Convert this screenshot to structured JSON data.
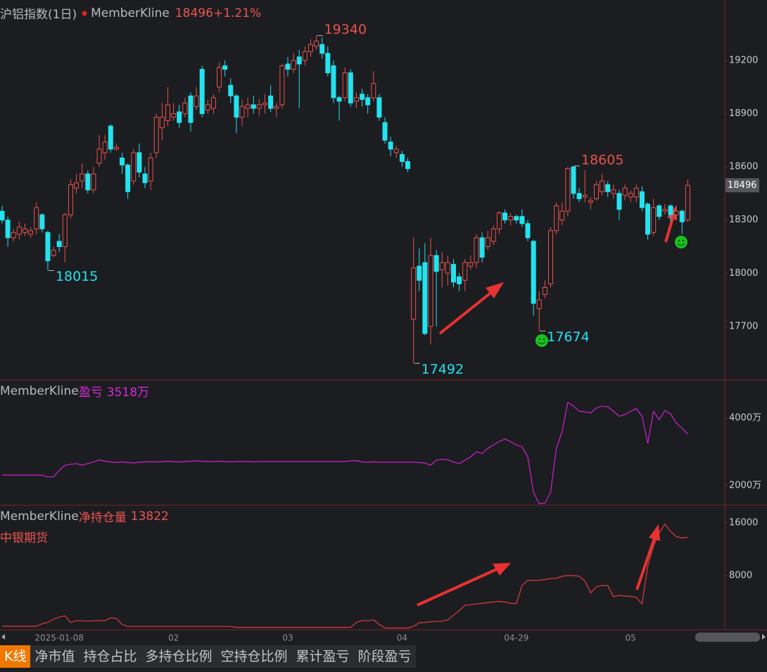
{
  "tabs": [
    "K线",
    "净市值",
    "持仓占比",
    "多持仓比例",
    "空持仓比例",
    "累计盈亏",
    "阶段盈亏"
  ],
  "active_tab": 0,
  "chart_data": [
    {
      "type": "candlestick",
      "title": "沪铝指数(1日)",
      "indicator": "MemberKline",
      "change_label": "+1.21%",
      "up_color": "#e8524a",
      "down_color": "#22e3ee",
      "ylim": [
        17398,
        19521
      ],
      "yticks": [
        17700,
        18000,
        18300,
        18600,
        18900,
        19200
      ],
      "annotations": [
        19340,
        18015,
        17492,
        17674,
        18605
      ],
      "categories": [
        null,
        null,
        null,
        null,
        null,
        null,
        null,
        null,
        null,
        null,
        "2025-01-08",
        null,
        null,
        null,
        null,
        null,
        null,
        null,
        null,
        null,
        null,
        null,
        null,
        null,
        null,
        null,
        null,
        null,
        null,
        null,
        "02",
        null,
        null,
        null,
        null,
        null,
        null,
        null,
        null,
        null,
        null,
        null,
        null,
        null,
        null,
        null,
        null,
        null,
        null,
        null,
        "03",
        null,
        null,
        null,
        null,
        null,
        null,
        null,
        null,
        null,
        null,
        null,
        null,
        null,
        null,
        null,
        null,
        null,
        null,
        null,
        "04",
        null,
        null,
        null,
        null,
        null,
        null,
        null,
        null,
        null,
        null,
        null,
        null,
        null,
        null,
        null,
        null,
        null,
        null,
        null,
        "04-29",
        null,
        null,
        null,
        null,
        null,
        null,
        null,
        null,
        null,
        null,
        null,
        null,
        null,
        null,
        null,
        null,
        null,
        null,
        null,
        "05",
        null,
        null,
        null,
        null,
        null,
        null,
        null,
        null,
        null,
        null
      ],
      "open": [
        18350,
        18300,
        18200,
        18220,
        18230,
        18220,
        18250,
        18330,
        18230,
        18100,
        18180,
        18150,
        18330,
        18480,
        18520,
        18560,
        18470,
        18620,
        18680,
        18830,
        18700,
        18650,
        18610,
        18520,
        18680,
        18560,
        18520,
        18680,
        18820,
        18860,
        18880,
        18910,
        18900,
        19000,
        18940,
        19150,
        18920,
        18930,
        19050,
        19170,
        19060,
        19000,
        18880,
        18930,
        18950,
        18930,
        18950,
        19000,
        18930,
        18950,
        19180,
        19150,
        19220,
        19200,
        19250,
        19280,
        19290,
        19240,
        19170,
        18990,
        18990,
        19130,
        18970,
        19010,
        18990,
        18990,
        18990,
        18850,
        18740,
        18680,
        18670,
        18630,
        17740,
        18040,
        18060,
        17700,
        18100,
        18020,
        18000,
        18050,
        17980,
        17960,
        18040,
        18060,
        18200,
        18150,
        18180,
        18250,
        18340,
        18300,
        18320,
        18320,
        18280,
        18180,
        17800,
        17880,
        17940,
        18240,
        18300,
        18350,
        18600,
        18450,
        18430,
        18400,
        18420,
        18460,
        18500,
        18450,
        18450,
        18440,
        18430,
        18430,
        18460,
        18390,
        18230,
        18380,
        18350,
        18380,
        18330,
        18350,
        18300
      ],
      "high": [
        18380,
        18320,
        18250,
        18290,
        18280,
        18260,
        18400,
        18340,
        18240,
        18150,
        18220,
        18340,
        18530,
        18560,
        18620,
        18580,
        18600,
        18780,
        18780,
        18840,
        18730,
        18680,
        18620,
        18700,
        18730,
        18600,
        18680,
        18900,
        18960,
        19050,
        18960,
        18950,
        18990,
        19020,
        19050,
        19170,
        18980,
        19010,
        19190,
        19200,
        19100,
        19010,
        18980,
        18990,
        19000,
        18980,
        19010,
        19060,
        18960,
        19180,
        19220,
        19240,
        19260,
        19280,
        19320,
        19340,
        19330,
        19280,
        19200,
        19000,
        19160,
        19150,
        19020,
        19040,
        19010,
        19140,
        19010,
        18880,
        18770,
        18720,
        18690,
        18650,
        18200,
        18140,
        18170,
        18200,
        18130,
        18120,
        18100,
        18080,
        18000,
        18080,
        18100,
        18220,
        18230,
        18240,
        18270,
        18350,
        18360,
        18340,
        18330,
        18360,
        18300,
        18190,
        17900,
        17960,
        18260,
        18400,
        18400,
        18600,
        18605,
        18480,
        18580,
        18430,
        18520,
        18560,
        18520,
        18500,
        18470,
        18500,
        18470,
        18500,
        18490,
        18400,
        18420,
        18390,
        18390,
        18390,
        18380,
        18360,
        18530
      ],
      "low": [
        18280,
        18150,
        18180,
        18190,
        18210,
        18200,
        18220,
        18230,
        18015,
        18090,
        18120,
        18060,
        18310,
        18450,
        18480,
        18450,
        18450,
        18600,
        18640,
        18680,
        18690,
        18560,
        18420,
        18500,
        18540,
        18480,
        18470,
        18650,
        18750,
        18830,
        18860,
        18820,
        18880,
        18800,
        18920,
        18880,
        18900,
        18900,
        19020,
        19110,
        18960,
        18790,
        18830,
        18880,
        18900,
        18890,
        18900,
        18910,
        18880,
        18930,
        19110,
        19130,
        18930,
        19170,
        19220,
        19260,
        19210,
        19110,
        18960,
        18860,
        18970,
        18940,
        18930,
        18940,
        18900,
        18970,
        18860,
        18730,
        18660,
        18650,
        18600,
        18570,
        17492,
        17900,
        17650,
        17600,
        17700,
        17920,
        17930,
        17920,
        17900,
        17900,
        18020,
        18030,
        18060,
        18130,
        18160,
        18220,
        18280,
        18270,
        18280,
        18260,
        18180,
        17760,
        17674,
        17860,
        17920,
        18220,
        18270,
        18320,
        18420,
        18400,
        18400,
        18360,
        18410,
        18440,
        18430,
        18420,
        18300,
        18410,
        18400,
        18400,
        18350,
        18190,
        18210,
        18300,
        18330,
        18290,
        18300,
        18220,
        18290
      ],
      "close": [
        18300,
        18200,
        18230,
        18260,
        18250,
        18240,
        18370,
        18250,
        18070,
        18130,
        18150,
        18330,
        18500,
        18510,
        18560,
        18470,
        18560,
        18700,
        18740,
        18700,
        18710,
        18610,
        18460,
        18680,
        18570,
        18510,
        18650,
        18880,
        18880,
        18950,
        18900,
        18850,
        18960,
        18850,
        19000,
        18900,
        18950,
        18990,
        19160,
        19150,
        19000,
        18880,
        18940,
        18950,
        18930,
        18950,
        18960,
        18930,
        18940,
        19170,
        19150,
        19200,
        19180,
        19250,
        19290,
        19310,
        19240,
        19130,
        18990,
        18970,
        19130,
        18960,
        18990,
        18980,
        18950,
        19070,
        18880,
        18750,
        18700,
        18700,
        18630,
        18590,
        18030,
        17960,
        17660,
        18100,
        18010,
        18060,
        18060,
        17950,
        17940,
        18060,
        18060,
        18200,
        18090,
        18200,
        18250,
        18340,
        18300,
        18320,
        18300,
        18280,
        18200,
        17830,
        17850,
        17920,
        18240,
        18380,
        18350,
        18590,
        18450,
        18420,
        18440,
        18410,
        18500,
        18520,
        18460,
        18470,
        18360,
        18480,
        18450,
        18480,
        18370,
        18220,
        18370,
        18320,
        18360,
        18330,
        18350,
        18290,
        18496
      ]
    },
    {
      "type": "line",
      "name": "MemberKline",
      "metric": "盈亏",
      "current_label": "3518万",
      "color": "#d21fd2",
      "ylim": [
        1417,
        5125
      ],
      "yticks": [
        {
          "value": 2000,
          "label": "2000万"
        },
        {
          "value": 4000,
          "label": "4000万"
        }
      ],
      "values": [
        2310,
        2310,
        2310,
        2310,
        2310,
        2310,
        2310,
        2310,
        2250,
        2260,
        2450,
        2600,
        2630,
        2650,
        2600,
        2650,
        2700,
        2760,
        2720,
        2700,
        2680,
        2700,
        2680,
        2670,
        2690,
        2700,
        2700,
        2700,
        2710,
        2720,
        2710,
        2700,
        2710,
        2720,
        2730,
        2720,
        2710,
        2710,
        2720,
        2710,
        2700,
        2710,
        2710,
        2710,
        2700,
        2710,
        2710,
        2710,
        2710,
        2710,
        2710,
        2710,
        2710,
        2710,
        2710,
        2710,
        2710,
        2710,
        2710,
        2710,
        2710,
        2730,
        2740,
        2700,
        2690,
        2700,
        2690,
        2690,
        2690,
        2690,
        2690,
        2690,
        2690,
        2680,
        2670,
        2600,
        2750,
        2780,
        2760,
        2700,
        2650,
        2750,
        2850,
        3000,
        2950,
        3100,
        3200,
        3300,
        3380,
        3300,
        3200,
        3150,
        2850,
        1800,
        1460,
        1480,
        1800,
        3100,
        3600,
        4460,
        4350,
        4200,
        4180,
        4150,
        4300,
        4350,
        4330,
        4200,
        4050,
        4100,
        4200,
        4280,
        4050,
        3250,
        4200,
        3950,
        4220,
        4120,
        3850,
        3700,
        3518
      ]
    },
    {
      "type": "line",
      "name": "MemberKline",
      "metric": "净持仓量",
      "member": "中银期货",
      "color": "#e23c3c",
      "ylim": [
        -213,
        18667
      ],
      "yticks": [
        8000,
        16000
      ],
      "values": [
        320,
        320,
        320,
        320,
        320,
        320,
        320,
        700,
        900,
        1400,
        1700,
        1900,
        900,
        1150,
        1150,
        1100,
        1150,
        1200,
        1150,
        1600,
        1500,
        600,
        300,
        300,
        300,
        300,
        300,
        300,
        300,
        300,
        300,
        300,
        300,
        300,
        300,
        300,
        300,
        300,
        300,
        300,
        300,
        150,
        150,
        150,
        150,
        150,
        150,
        150,
        150,
        150,
        150,
        150,
        150,
        150,
        150,
        150,
        150,
        150,
        150,
        150,
        150,
        150,
        900,
        1200,
        1150,
        1300,
        600,
        50,
        50,
        50,
        50,
        50,
        300,
        850,
        900,
        1000,
        1050,
        1100,
        1300,
        2000,
        2700,
        3500,
        3600,
        3700,
        3800,
        3900,
        4000,
        4100,
        4000,
        3800,
        3750,
        6500,
        7300,
        7250,
        7300,
        7400,
        7550,
        7600,
        7900,
        8000,
        8000,
        7900,
        7200,
        5400,
        6300,
        6500,
        6500,
        4800,
        5000,
        4900,
        4850,
        4700,
        3700,
        9500,
        12500,
        14500,
        15800,
        14700,
        13900,
        13700,
        13822
      ]
    }
  ]
}
